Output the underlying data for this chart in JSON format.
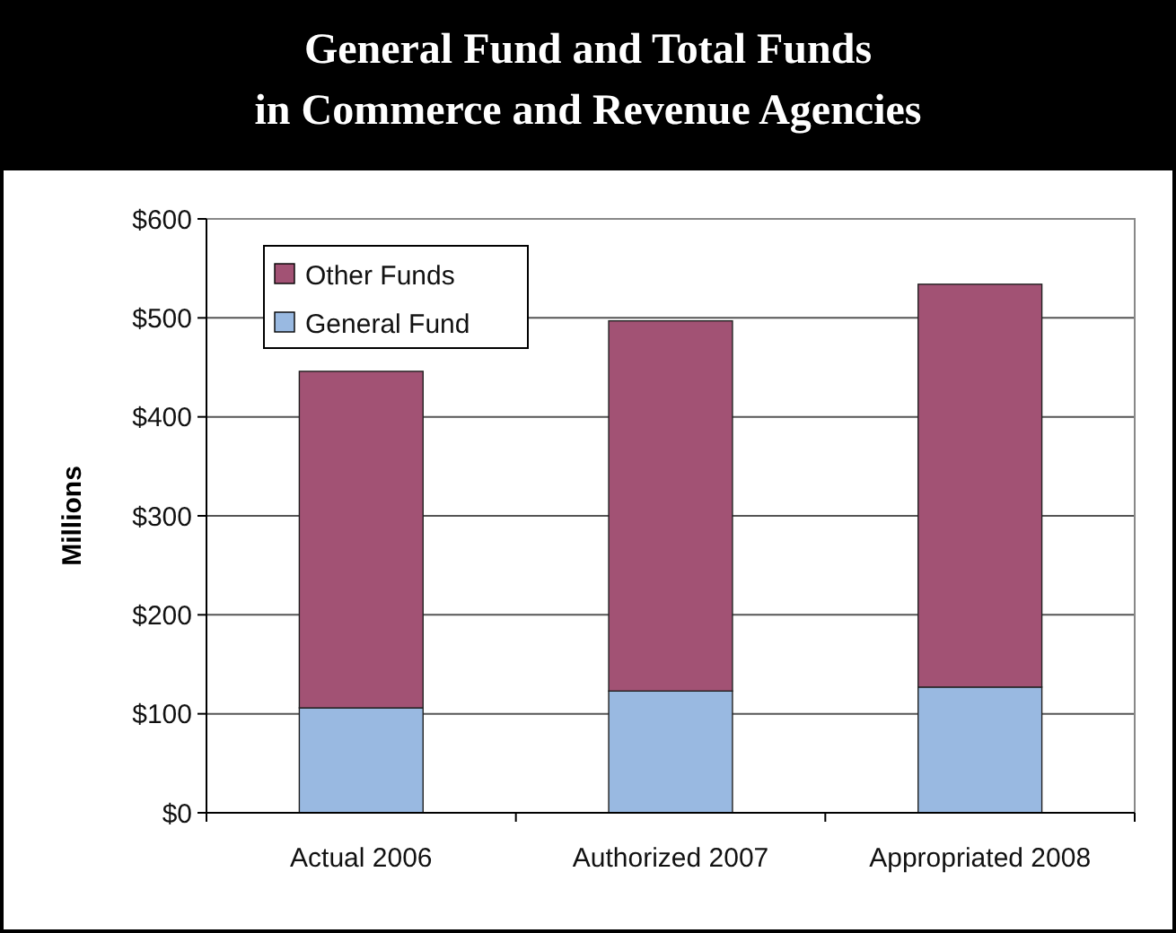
{
  "chart_data": {
    "type": "bar",
    "title": "General Fund and Total Funds\nin Commerce and Revenue Agencies",
    "ylabel": "Millions",
    "categories": [
      "Actual 2006",
      "Authorized 2007",
      "Appropriated 2008"
    ],
    "series": [
      {
        "name": "General Fund",
        "color": "#99b9e1",
        "values": [
          106,
          123,
          127
        ]
      },
      {
        "name": "Other Funds",
        "color": "#a25274",
        "values": [
          340,
          374,
          407
        ]
      }
    ],
    "stacked": true,
    "ylim": [
      0,
      600
    ],
    "yticks": [
      {
        "value": 0,
        "label": "$0"
      },
      {
        "value": 100,
        "label": "$100"
      },
      {
        "value": 200,
        "label": "$200"
      },
      {
        "value": 300,
        "label": "$300"
      },
      {
        "value": 400,
        "label": "$400"
      },
      {
        "value": 500,
        "label": "$500"
      },
      {
        "value": 600,
        "label": "$600"
      }
    ],
    "grid": "y",
    "legend": "top left"
  }
}
